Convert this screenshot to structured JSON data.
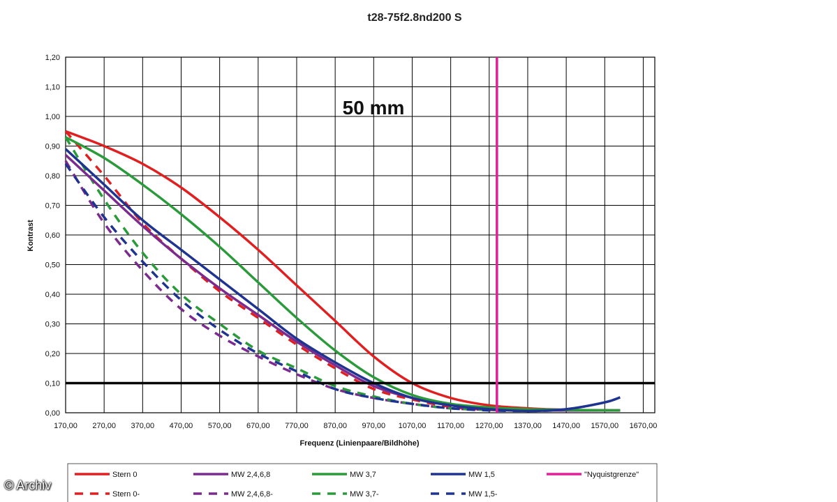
{
  "chart_data": {
    "type": "line",
    "title": "t28-75f2.8nd200 S",
    "annotation": "50 mm",
    "xlabel": "Frequenz (Linienpaare/Bildhöhe)",
    "ylabel": "Kontrast",
    "xlim": [
      170,
      1700
    ],
    "ylim": [
      0,
      1.2
    ],
    "x_ticks": [
      "170,00",
      "270,00",
      "370,00",
      "470,00",
      "570,00",
      "670,00",
      "770,00",
      "870,00",
      "970,00",
      "1070,00",
      "1170,00",
      "1270,00",
      "1370,00",
      "1470,00",
      "1570,00",
      "1670,00"
    ],
    "y_ticks": [
      "0,00",
      "0,10",
      "0,20",
      "0,30",
      "0,40",
      "0,50",
      "0,60",
      "0,70",
      "0,80",
      "0,90",
      "1,00",
      "1,10",
      "1,20"
    ],
    "grid": true,
    "legend_position": "bottom",
    "x": [
      170,
      270,
      370,
      470,
      570,
      670,
      770,
      870,
      970,
      1070,
      1170,
      1270,
      1370,
      1470,
      1570,
      1610
    ],
    "series": [
      {
        "name": "Stern 0",
        "color": "#e02020",
        "dashed": false,
        "values": [
          0.95,
          0.9,
          0.84,
          0.76,
          0.66,
          0.55,
          0.43,
          0.31,
          0.19,
          0.1,
          0.05,
          0.025,
          0.015,
          0.01,
          0.008,
          0.008
        ]
      },
      {
        "name": "MW 2,4,6,8",
        "color": "#7b2a8e",
        "dashed": false,
        "values": [
          0.87,
          0.75,
          0.63,
          0.52,
          0.42,
          0.33,
          0.24,
          0.16,
          0.09,
          0.05,
          0.025,
          0.015,
          0.01,
          0.008,
          0.008,
          0.008
        ]
      },
      {
        "name": "MW 3,7",
        "color": "#2a9a3a",
        "dashed": false,
        "values": [
          0.93,
          0.86,
          0.77,
          0.67,
          0.56,
          0.44,
          0.32,
          0.21,
          0.12,
          0.06,
          0.03,
          0.018,
          0.012,
          0.01,
          0.008,
          0.008
        ]
      },
      {
        "name": "MW 1,5",
        "color": "#1f3390",
        "dashed": false,
        "values": [
          0.89,
          0.77,
          0.65,
          0.55,
          0.45,
          0.35,
          0.25,
          0.17,
          0.1,
          0.05,
          0.025,
          0.012,
          0.006,
          0.012,
          0.035,
          0.052
        ]
      },
      {
        "name": "\"Nyquistgrenze\"",
        "color": "#e0209a",
        "dashed": false,
        "vertical_x": 1290
      },
      {
        "name": "Stern 0-",
        "color": "#e02020",
        "dashed": true,
        "values": [
          0.95,
          0.8,
          0.64,
          0.52,
          0.41,
          0.32,
          0.23,
          0.15,
          0.08,
          0.045,
          0.02,
          0.01,
          0.008,
          0.008,
          0.008,
          0.008
        ]
      },
      {
        "name": "MW 2,4,6,8-",
        "color": "#7b2a8e",
        "dashed": true,
        "values": [
          0.85,
          0.64,
          0.48,
          0.35,
          0.26,
          0.19,
          0.13,
          0.08,
          0.05,
          0.03,
          0.015,
          0.01,
          0.008,
          0.008,
          0.008,
          0.008
        ]
      },
      {
        "name": "MW 3,7-",
        "color": "#2a9a3a",
        "dashed": true,
        "values": [
          0.93,
          0.72,
          0.54,
          0.4,
          0.3,
          0.21,
          0.15,
          0.09,
          0.055,
          0.03,
          0.015,
          0.01,
          0.008,
          0.008,
          0.008,
          0.008
        ]
      },
      {
        "name": "MW 1,5-",
        "color": "#1f3390",
        "dashed": true,
        "values": [
          0.84,
          0.66,
          0.51,
          0.38,
          0.28,
          0.2,
          0.14,
          0.08,
          0.05,
          0.03,
          0.015,
          0.008,
          0.006,
          0.008,
          0.008,
          0.008
        ]
      }
    ],
    "reference_line": {
      "y": 0.1,
      "color": "#000000"
    }
  },
  "watermark": "© Archiv"
}
